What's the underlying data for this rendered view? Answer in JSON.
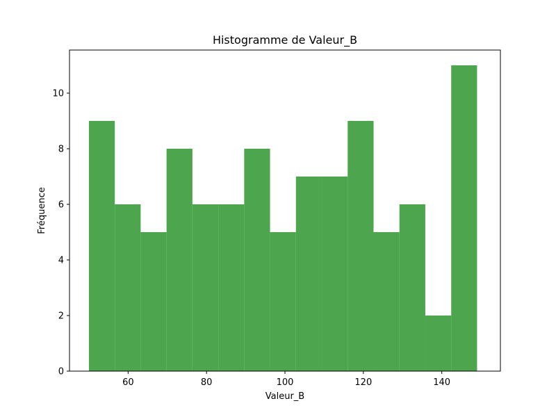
{
  "chart_data": {
    "type": "bar",
    "title": "Histogramme de Valeur_B",
    "xlabel": "Valeur_B",
    "ylabel": "Fréquence",
    "xlim": [
      45.05,
      154.95
    ],
    "ylim": [
      0,
      11.55
    ],
    "xticks": [
      60,
      80,
      100,
      120,
      140
    ],
    "yticks": [
      0,
      2,
      4,
      6,
      8,
      10
    ],
    "bin_edges": [
      50,
      56.6,
      63.2,
      69.8,
      76.4,
      83,
      89.6,
      96.2,
      102.8,
      109.4,
      116,
      122.6,
      129.2,
      135.8,
      142.4,
      149
    ],
    "values": [
      9,
      6,
      5,
      8,
      6,
      6,
      8,
      5,
      7,
      7,
      9,
      5,
      6,
      2,
      11
    ],
    "bar_color": "#4da64d",
    "grid": false
  }
}
